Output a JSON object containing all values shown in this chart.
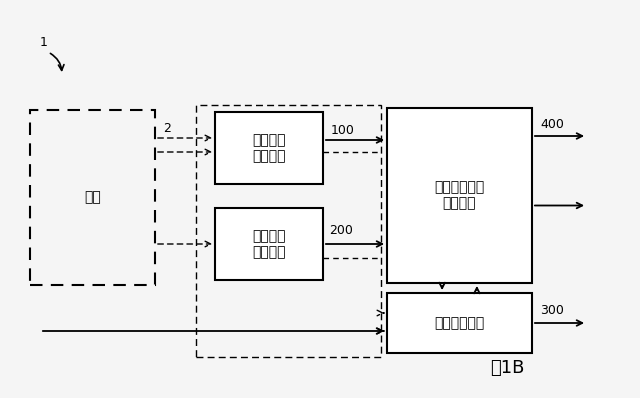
{
  "bg_color": "#f5f5f5",
  "title_caption": "図1B",
  "label_1": "1",
  "label_2": "2",
  "label_100": "100",
  "label_200": "200",
  "label_300": "300",
  "label_400": "400",
  "box_shisetsu_label": "施設",
  "box_shukan_label": "主観調査\nシステム",
  "box_kyakkan_label": "客観調査\nシステム",
  "box_keikaku_label": "計画要件抜出\nシステム",
  "box_simulator_label": "シミュレータ",
  "font_size_box": 10,
  "font_size_label": 9,
  "font_size_caption": 13
}
